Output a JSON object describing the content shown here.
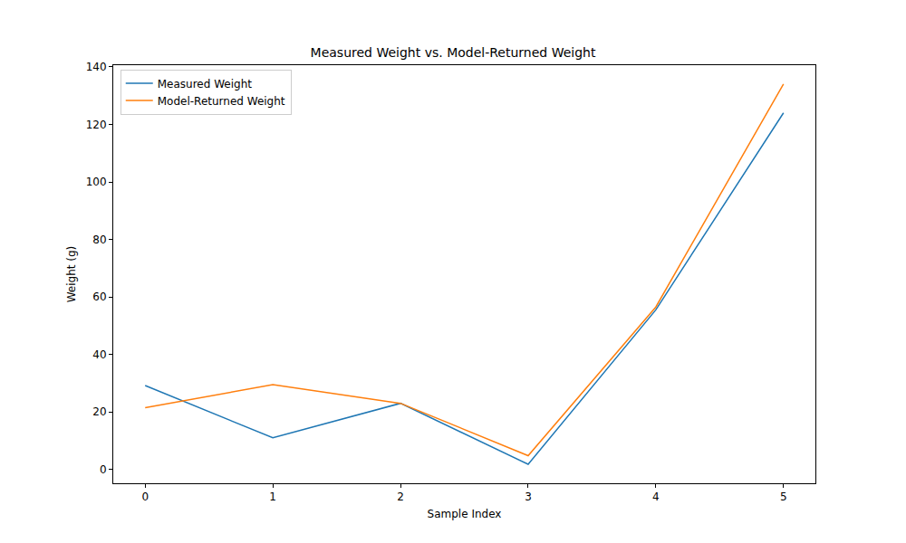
{
  "chart_data": {
    "type": "line",
    "title": "Measured Weight vs. Model-Returned Weight",
    "x_label": "Sample Index",
    "y_label": "Weight (g)",
    "x": [
      0,
      1,
      2,
      3,
      4,
      5
    ],
    "series": [
      {
        "name": "Measured Weight",
        "color": "#1f77b4",
        "values": [
          29.2,
          11,
          23,
          1.8,
          55.5,
          124
        ]
      },
      {
        "name": "Model-Returned Weight",
        "color": "#ff7f0e",
        "values": [
          21.5,
          29.5,
          23,
          4.8,
          56.5,
          134
        ]
      }
    ],
    "xlim": [
      -0.25,
      5.25
    ],
    "xticks": [
      0,
      1,
      2,
      3,
      4,
      5
    ],
    "ylim": [
      -4.8,
      140.6
    ],
    "yticks": [
      0,
      20,
      40,
      60,
      80,
      100,
      120,
      140
    ],
    "grid": false,
    "legend": "upper left"
  }
}
